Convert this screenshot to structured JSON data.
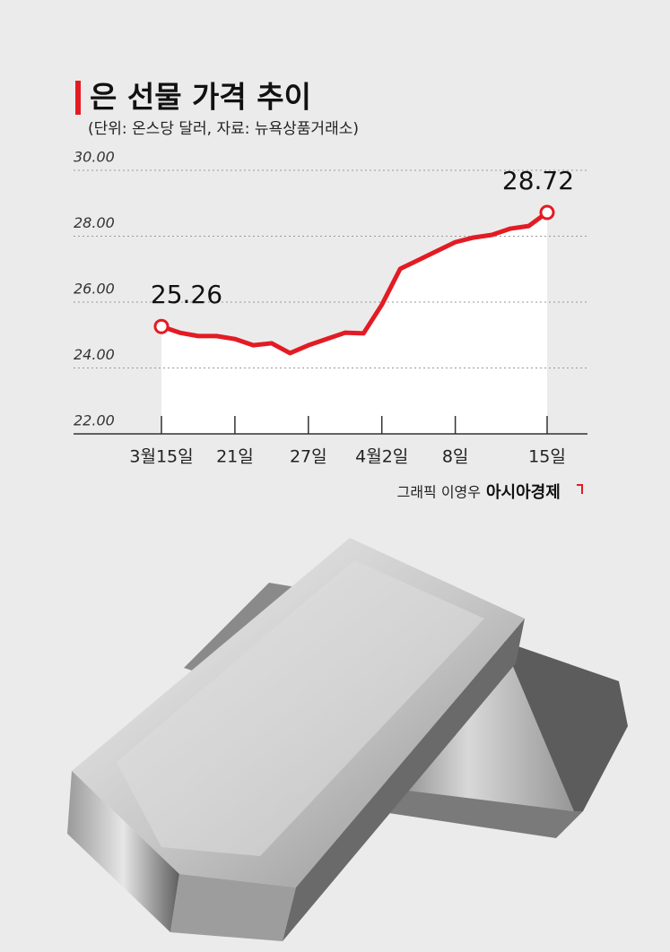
{
  "chart_data": {
    "type": "area",
    "title": "은 선물 가격 추이",
    "subtitle": "(단위: 온스당 달러, 자료: 뉴욕상품거래소)",
    "credit": "그래픽 이영우",
    "source_brand": "아시아경제",
    "categories": [
      "3월15일",
      null,
      null,
      null,
      "21일",
      null,
      null,
      null,
      "27일",
      null,
      null,
      null,
      "4월2일",
      null,
      null,
      null,
      "8일",
      null,
      null,
      null,
      null,
      "15일"
    ],
    "values": [
      25.26,
      25.07,
      24.97,
      24.97,
      24.88,
      24.69,
      24.75,
      24.45,
      24.69,
      24.88,
      25.07,
      25.05,
      25.92,
      27.01,
      27.28,
      27.55,
      27.82,
      27.96,
      28.04,
      28.23,
      28.31,
      28.72
    ],
    "value_labels": [
      "25.26",
      null,
      null,
      null,
      null,
      null,
      null,
      null,
      null,
      null,
      null,
      null,
      null,
      null,
      null,
      null,
      null,
      null,
      null,
      null,
      null,
      "28.72"
    ],
    "color": "#e31b23",
    "ylim": [
      22,
      30
    ],
    "yticks": [
      {
        "value": 22,
        "label": "22.00"
      },
      {
        "value": 24,
        "label": "24.00"
      },
      {
        "value": 26,
        "label": "26.00"
      },
      {
        "value": 28,
        "label": "28.00"
      },
      {
        "value": 30,
        "label": "30.00"
      }
    ],
    "grid": true
  }
}
